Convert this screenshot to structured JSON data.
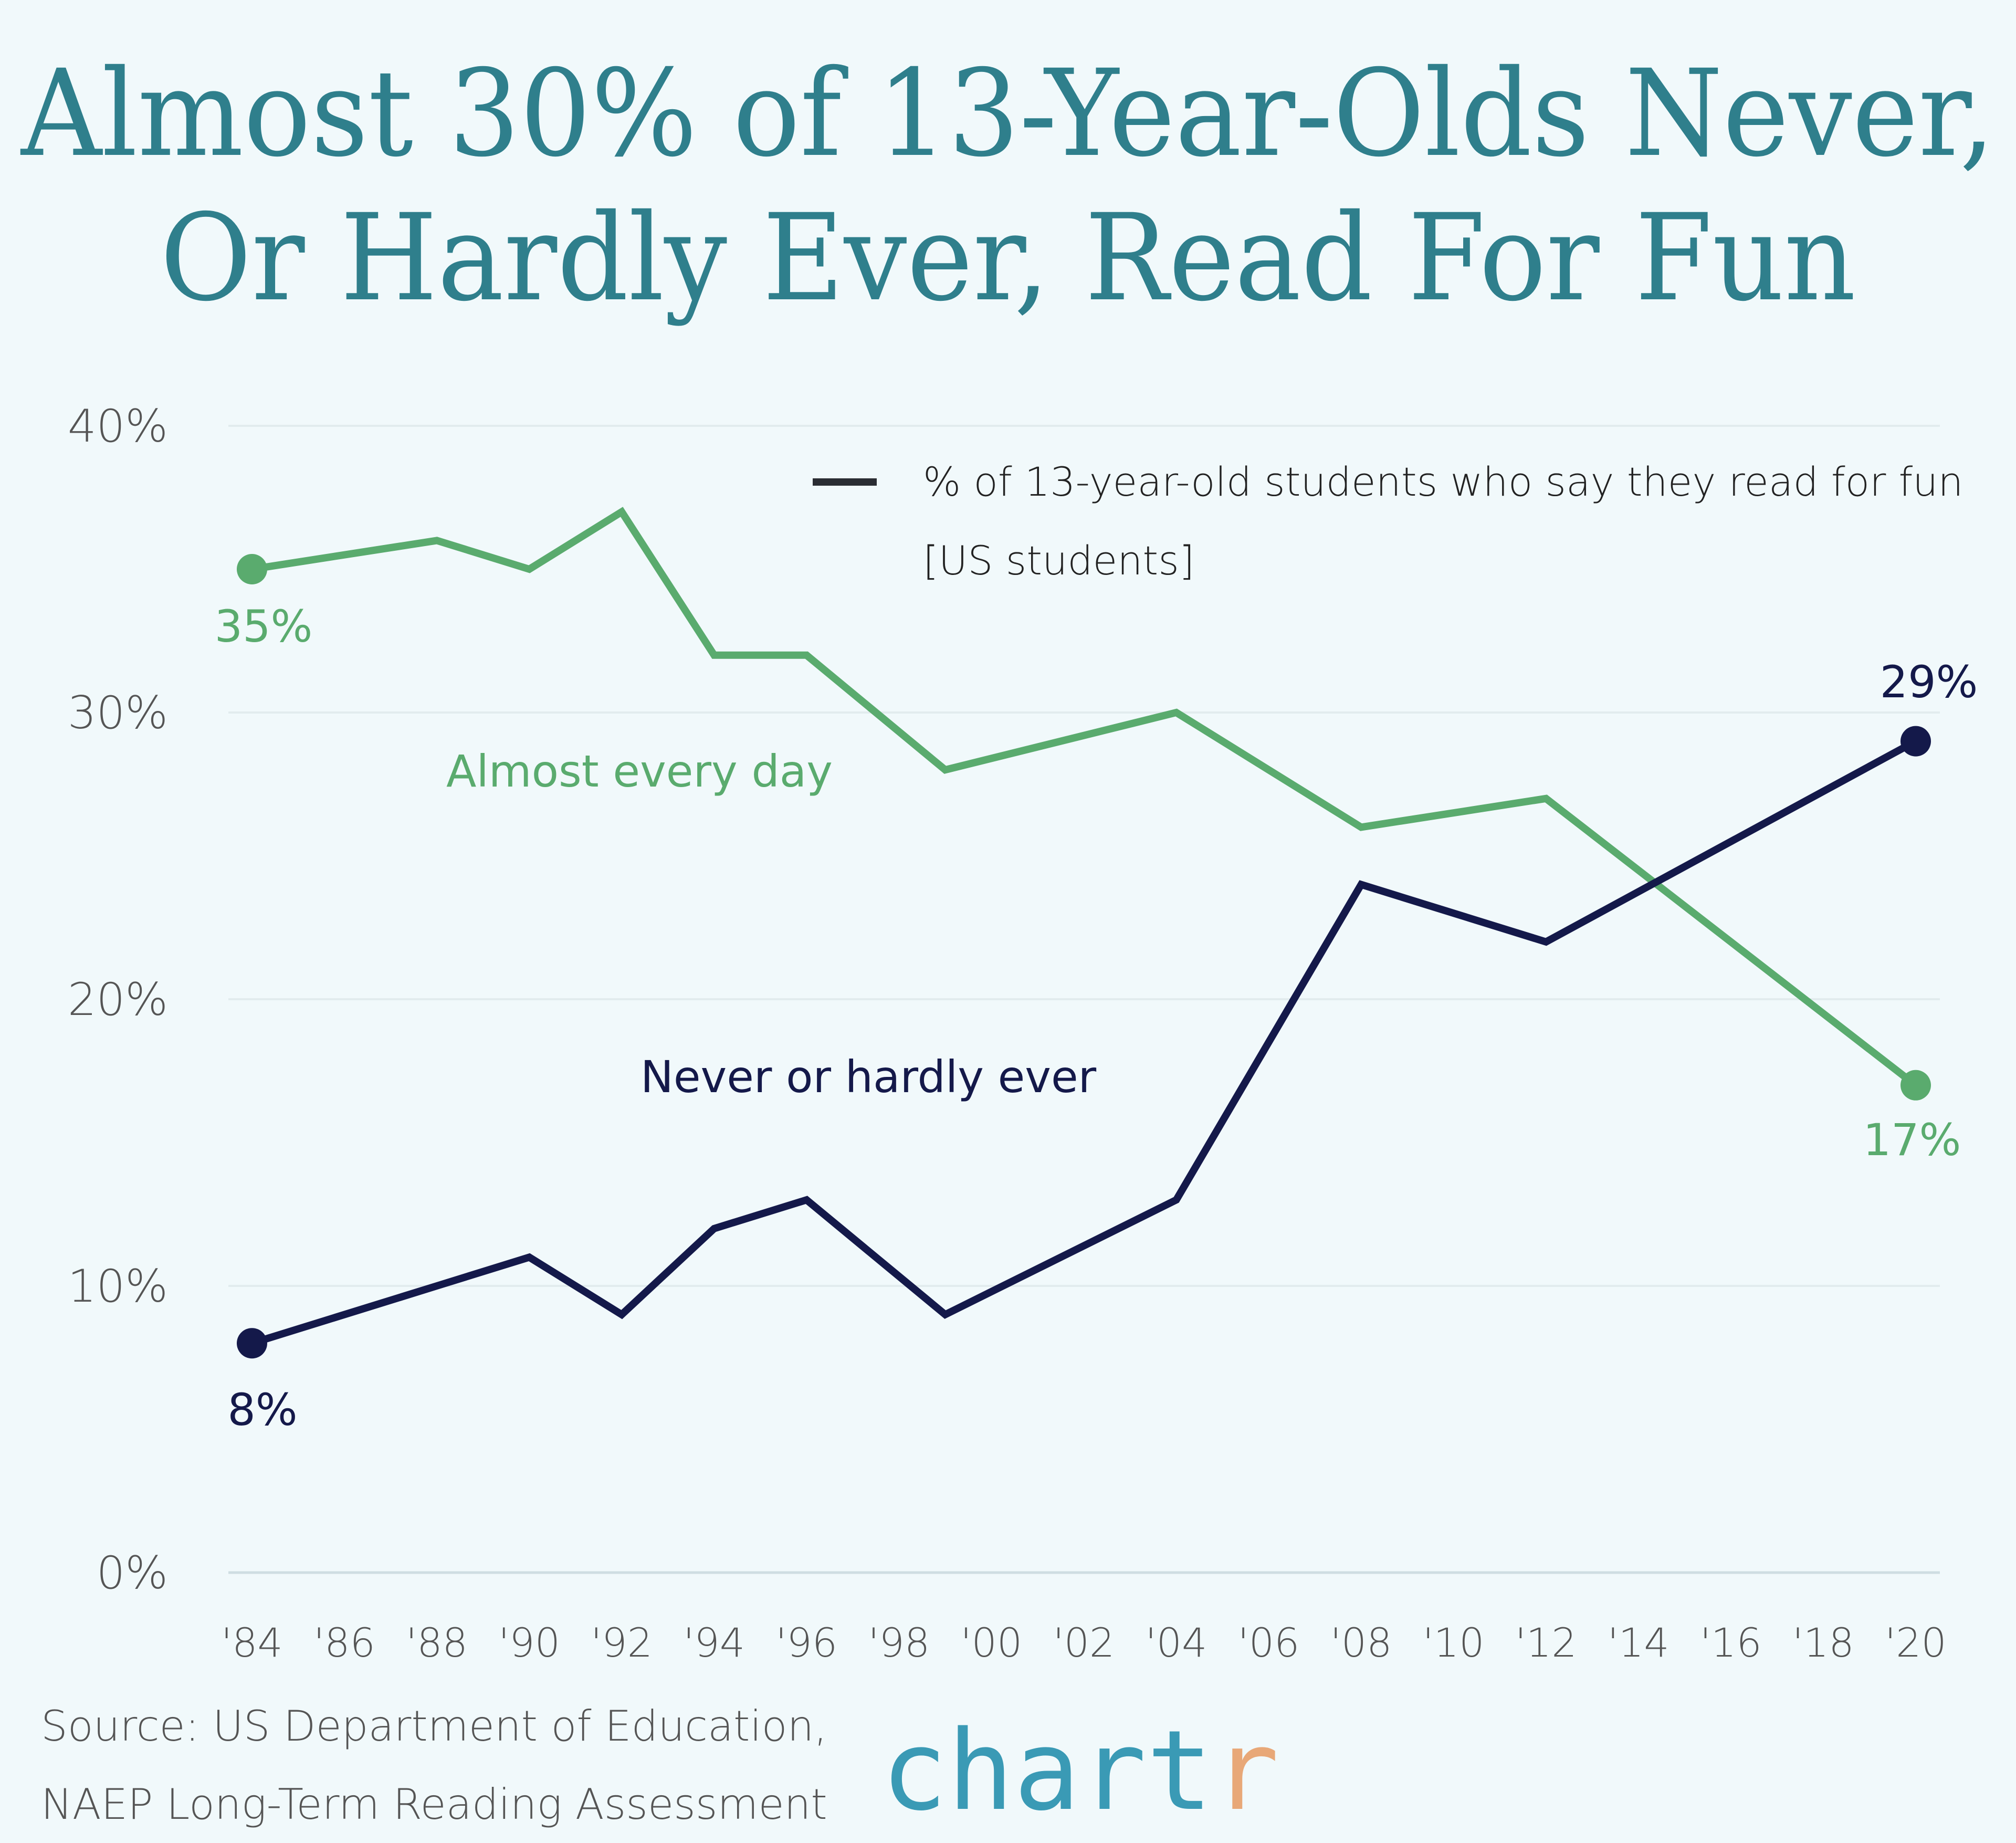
{
  "chart_data": {
    "type": "line",
    "title": "Almost 30% of 13-Year-Olds Never, Or Hardly Ever, Read For Fun",
    "title_lines": [
      "Almost 30% of 13-Year-Olds Never,",
      "Or Hardly Ever, Read For Fun"
    ],
    "legend": [
      "% of 13-year-old students who say they read for fun",
      "[US students]"
    ],
    "legend_placement": "top-right",
    "x": [
      1984,
      1988,
      1990,
      1992,
      1994,
      1996,
      1999,
      2004,
      2008,
      2012,
      2020
    ],
    "series": [
      {
        "name": "Almost every day",
        "color": "#5aab6e",
        "values": [
          35,
          36,
          35,
          37,
          32,
          32,
          28,
          30,
          26,
          27,
          17
        ],
        "start_label": "35%",
        "end_label": "17%"
      },
      {
        "name": "Never or hardly ever",
        "color": "#14194a",
        "values": [
          8,
          10,
          11,
          9,
          12,
          13,
          9,
          13,
          24,
          22,
          29
        ],
        "start_label": "8%",
        "end_label": "29%"
      }
    ],
    "xlim": [
      1984,
      2020
    ],
    "ylim": [
      0,
      40
    ],
    "yticks": [
      0,
      10,
      20,
      30,
      40
    ],
    "ytick_labels": [
      "0%",
      "10%",
      "20%",
      "30%",
      "40%"
    ],
    "xtick_labels": [
      "'84",
      "'86",
      "'88",
      "'90",
      "'92",
      "'94",
      "'96",
      "'98",
      "'00",
      "'02",
      "'04",
      "'06",
      "'08",
      "'10",
      "'12",
      "'14",
      "'16",
      "'18",
      "'20"
    ],
    "grid": "horizontal",
    "xlabel": "",
    "ylabel": ""
  },
  "footer": {
    "source_lines": [
      "Source: US Department of Education,",
      "NAEP Long-Term Reading Assessment"
    ],
    "logo_main": "chart",
    "logo_accent": "r",
    "logo_text": "chartr",
    "logo_color": "#3a9ab5",
    "logo_accent_color": "#e8a878"
  }
}
